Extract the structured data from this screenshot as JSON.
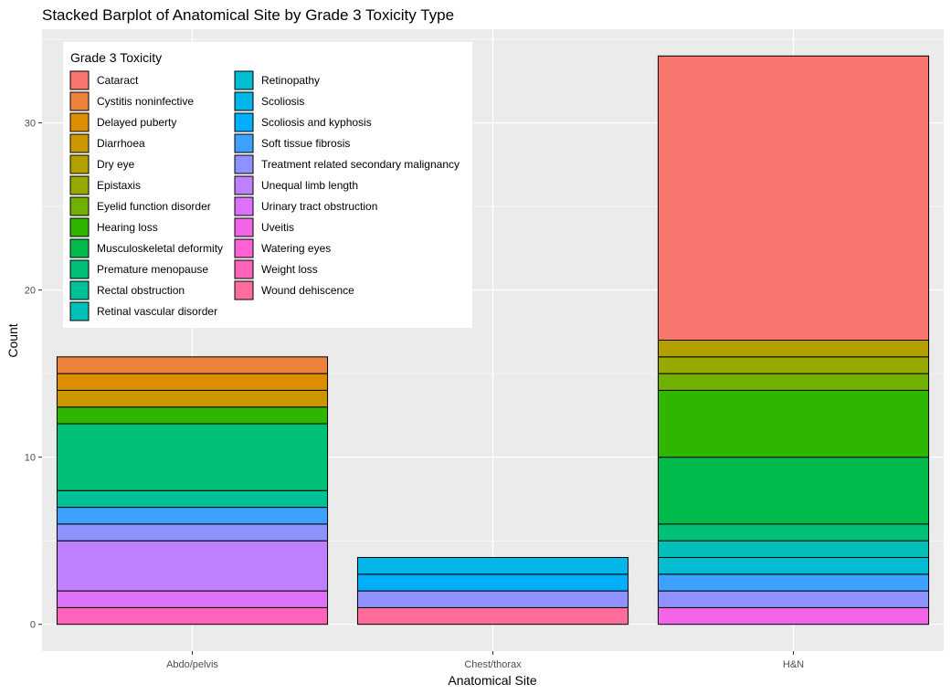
{
  "chart_data": {
    "type": "bar",
    "stacked": true,
    "title": "Stacked Barplot of Anatomical Site by Grade 3 Toxicity Type",
    "xlabel": "Anatomical Site",
    "ylabel": "Count",
    "categories": [
      "Abdo/pelvis",
      "Chest/thorax",
      "H&N"
    ],
    "ylim": [
      -1.6,
      35.6
    ],
    "yticks": [
      0,
      10,
      20,
      30
    ],
    "grid": true,
    "legend": {
      "title": "Grade 3 Toxicity",
      "placement": "top-left inside",
      "columns": 2
    },
    "series": [
      {
        "name": "Cataract",
        "color": "#F8766D",
        "values": [
          0,
          0,
          17
        ]
      },
      {
        "name": "Cystitis noninfective",
        "color": "#EC823C",
        "values": [
          1,
          0,
          0
        ]
      },
      {
        "name": "Delayed puberty",
        "color": "#DD8D00",
        "values": [
          1,
          0,
          0
        ]
      },
      {
        "name": "Diarrhoea",
        "color": "#CA9700",
        "values": [
          1,
          0,
          0
        ]
      },
      {
        "name": "Dry eye",
        "color": "#B3A000",
        "values": [
          0,
          0,
          1
        ]
      },
      {
        "name": "Epistaxis",
        "color": "#97A900",
        "values": [
          0,
          0,
          1
        ]
      },
      {
        "name": "Eyelid function disorder",
        "color": "#71B000",
        "values": [
          0,
          0,
          1
        ]
      },
      {
        "name": "Hearing loss",
        "color": "#2FB600",
        "values": [
          1,
          0,
          4
        ]
      },
      {
        "name": "Musculoskeletal deformity",
        "color": "#00BB4B",
        "values": [
          0,
          0,
          4
        ]
      },
      {
        "name": "Premature menopause",
        "color": "#00BF76",
        "values": [
          4,
          0,
          1
        ]
      },
      {
        "name": "Rectal obstruction",
        "color": "#00C098",
        "values": [
          1,
          0,
          0
        ]
      },
      {
        "name": "Retinal vascular disorder",
        "color": "#00C0B7",
        "values": [
          0,
          0,
          1
        ]
      },
      {
        "name": "Retinopathy",
        "color": "#00BDD1",
        "values": [
          0,
          0,
          1
        ]
      },
      {
        "name": "Scoliosis",
        "color": "#00B7E8",
        "values": [
          0,
          1,
          0
        ]
      },
      {
        "name": "Scoliosis and kyphosis",
        "color": "#00AEFA",
        "values": [
          0,
          1,
          0
        ]
      },
      {
        "name": "Soft tissue fibrosis",
        "color": "#3DA1FF",
        "values": [
          1,
          0,
          1
        ]
      },
      {
        "name": "Treatment related secondary malignancy",
        "color": "#8F91FF",
        "values": [
          1,
          1,
          1
        ]
      },
      {
        "name": "Unequal limb length",
        "color": "#BE80FF",
        "values": [
          3,
          0,
          0
        ]
      },
      {
        "name": "Urinary tract obstruction",
        "color": "#DE71F9",
        "values": [
          1,
          0,
          0
        ]
      },
      {
        "name": "Uveitis",
        "color": "#F265E7",
        "values": [
          0,
          0,
          1
        ]
      },
      {
        "name": "Watering eyes",
        "color": "#FD61D3",
        "values": [
          0,
          0,
          0
        ]
      },
      {
        "name": "Weight loss",
        "color": "#FF63B9",
        "values": [
          1,
          0,
          0
        ]
      },
      {
        "name": "Wound dehiscence",
        "color": "#FF6C9A",
        "values": [
          0,
          1,
          0
        ]
      }
    ]
  },
  "colors": {
    "panel_background": "#EBEBEB",
    "grid": "#FFFFFF",
    "bar_outline": "#000000"
  }
}
